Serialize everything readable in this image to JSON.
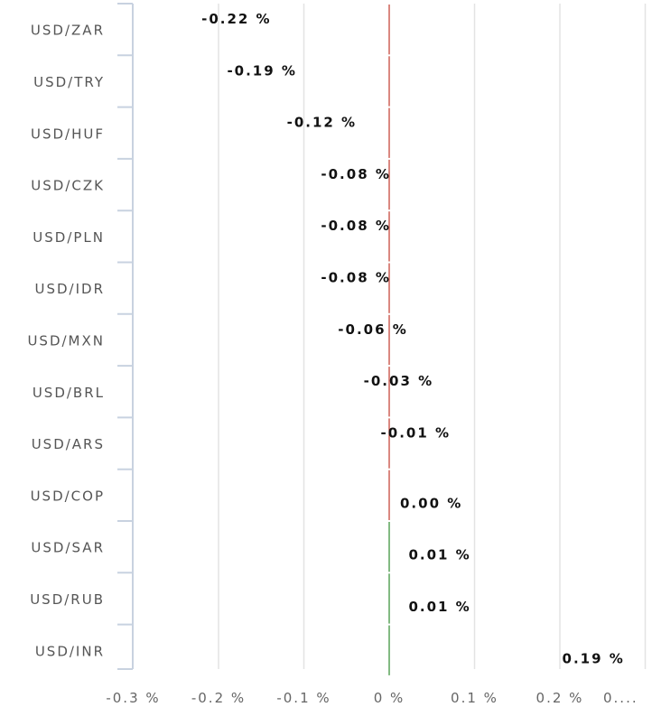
{
  "chart_data": {
    "type": "bar",
    "orientation": "horizontal",
    "categories": [
      "USD/ZAR",
      "USD/TRY",
      "USD/HUF",
      "USD/CZK",
      "USD/PLN",
      "USD/IDR",
      "USD/MXN",
      "USD/BRL",
      "USD/ARS",
      "USD/COP",
      "USD/SAR",
      "USD/RUB",
      "USD/INR"
    ],
    "values": [
      -0.22,
      -0.19,
      -0.12,
      -0.08,
      -0.08,
      -0.08,
      -0.06,
      -0.03,
      -0.01,
      0.0,
      0.01,
      0.01,
      0.19
    ],
    "data_labels": [
      "-0.22 %",
      "-0.19 %",
      "-0.12 %",
      "-0.08 %",
      "-0.08 %",
      "-0.08 %",
      "-0.06 %",
      "-0.03 %",
      "-0.01 %",
      "0.00 %",
      "0.01 %",
      "0.01 %",
      "0.19 %"
    ],
    "x_ticks": [
      -0.3,
      -0.2,
      -0.1,
      0,
      0.1,
      0.2,
      0.3
    ],
    "x_tick_labels": [
      "-0.3 %",
      "-0.2 %",
      "-0.1 %",
      "0 %",
      "0.1 %",
      "0.2 %",
      "0...."
    ],
    "xlim": [
      -0.3,
      0.3
    ],
    "grid": true,
    "title": "",
    "xlabel": "",
    "ylabel": "",
    "colors": {
      "negative_marker": "#c0392b",
      "positive_marker": "#2e8b2e",
      "grid": "#e3e3e3",
      "axis": "#c8d2e0"
    }
  }
}
